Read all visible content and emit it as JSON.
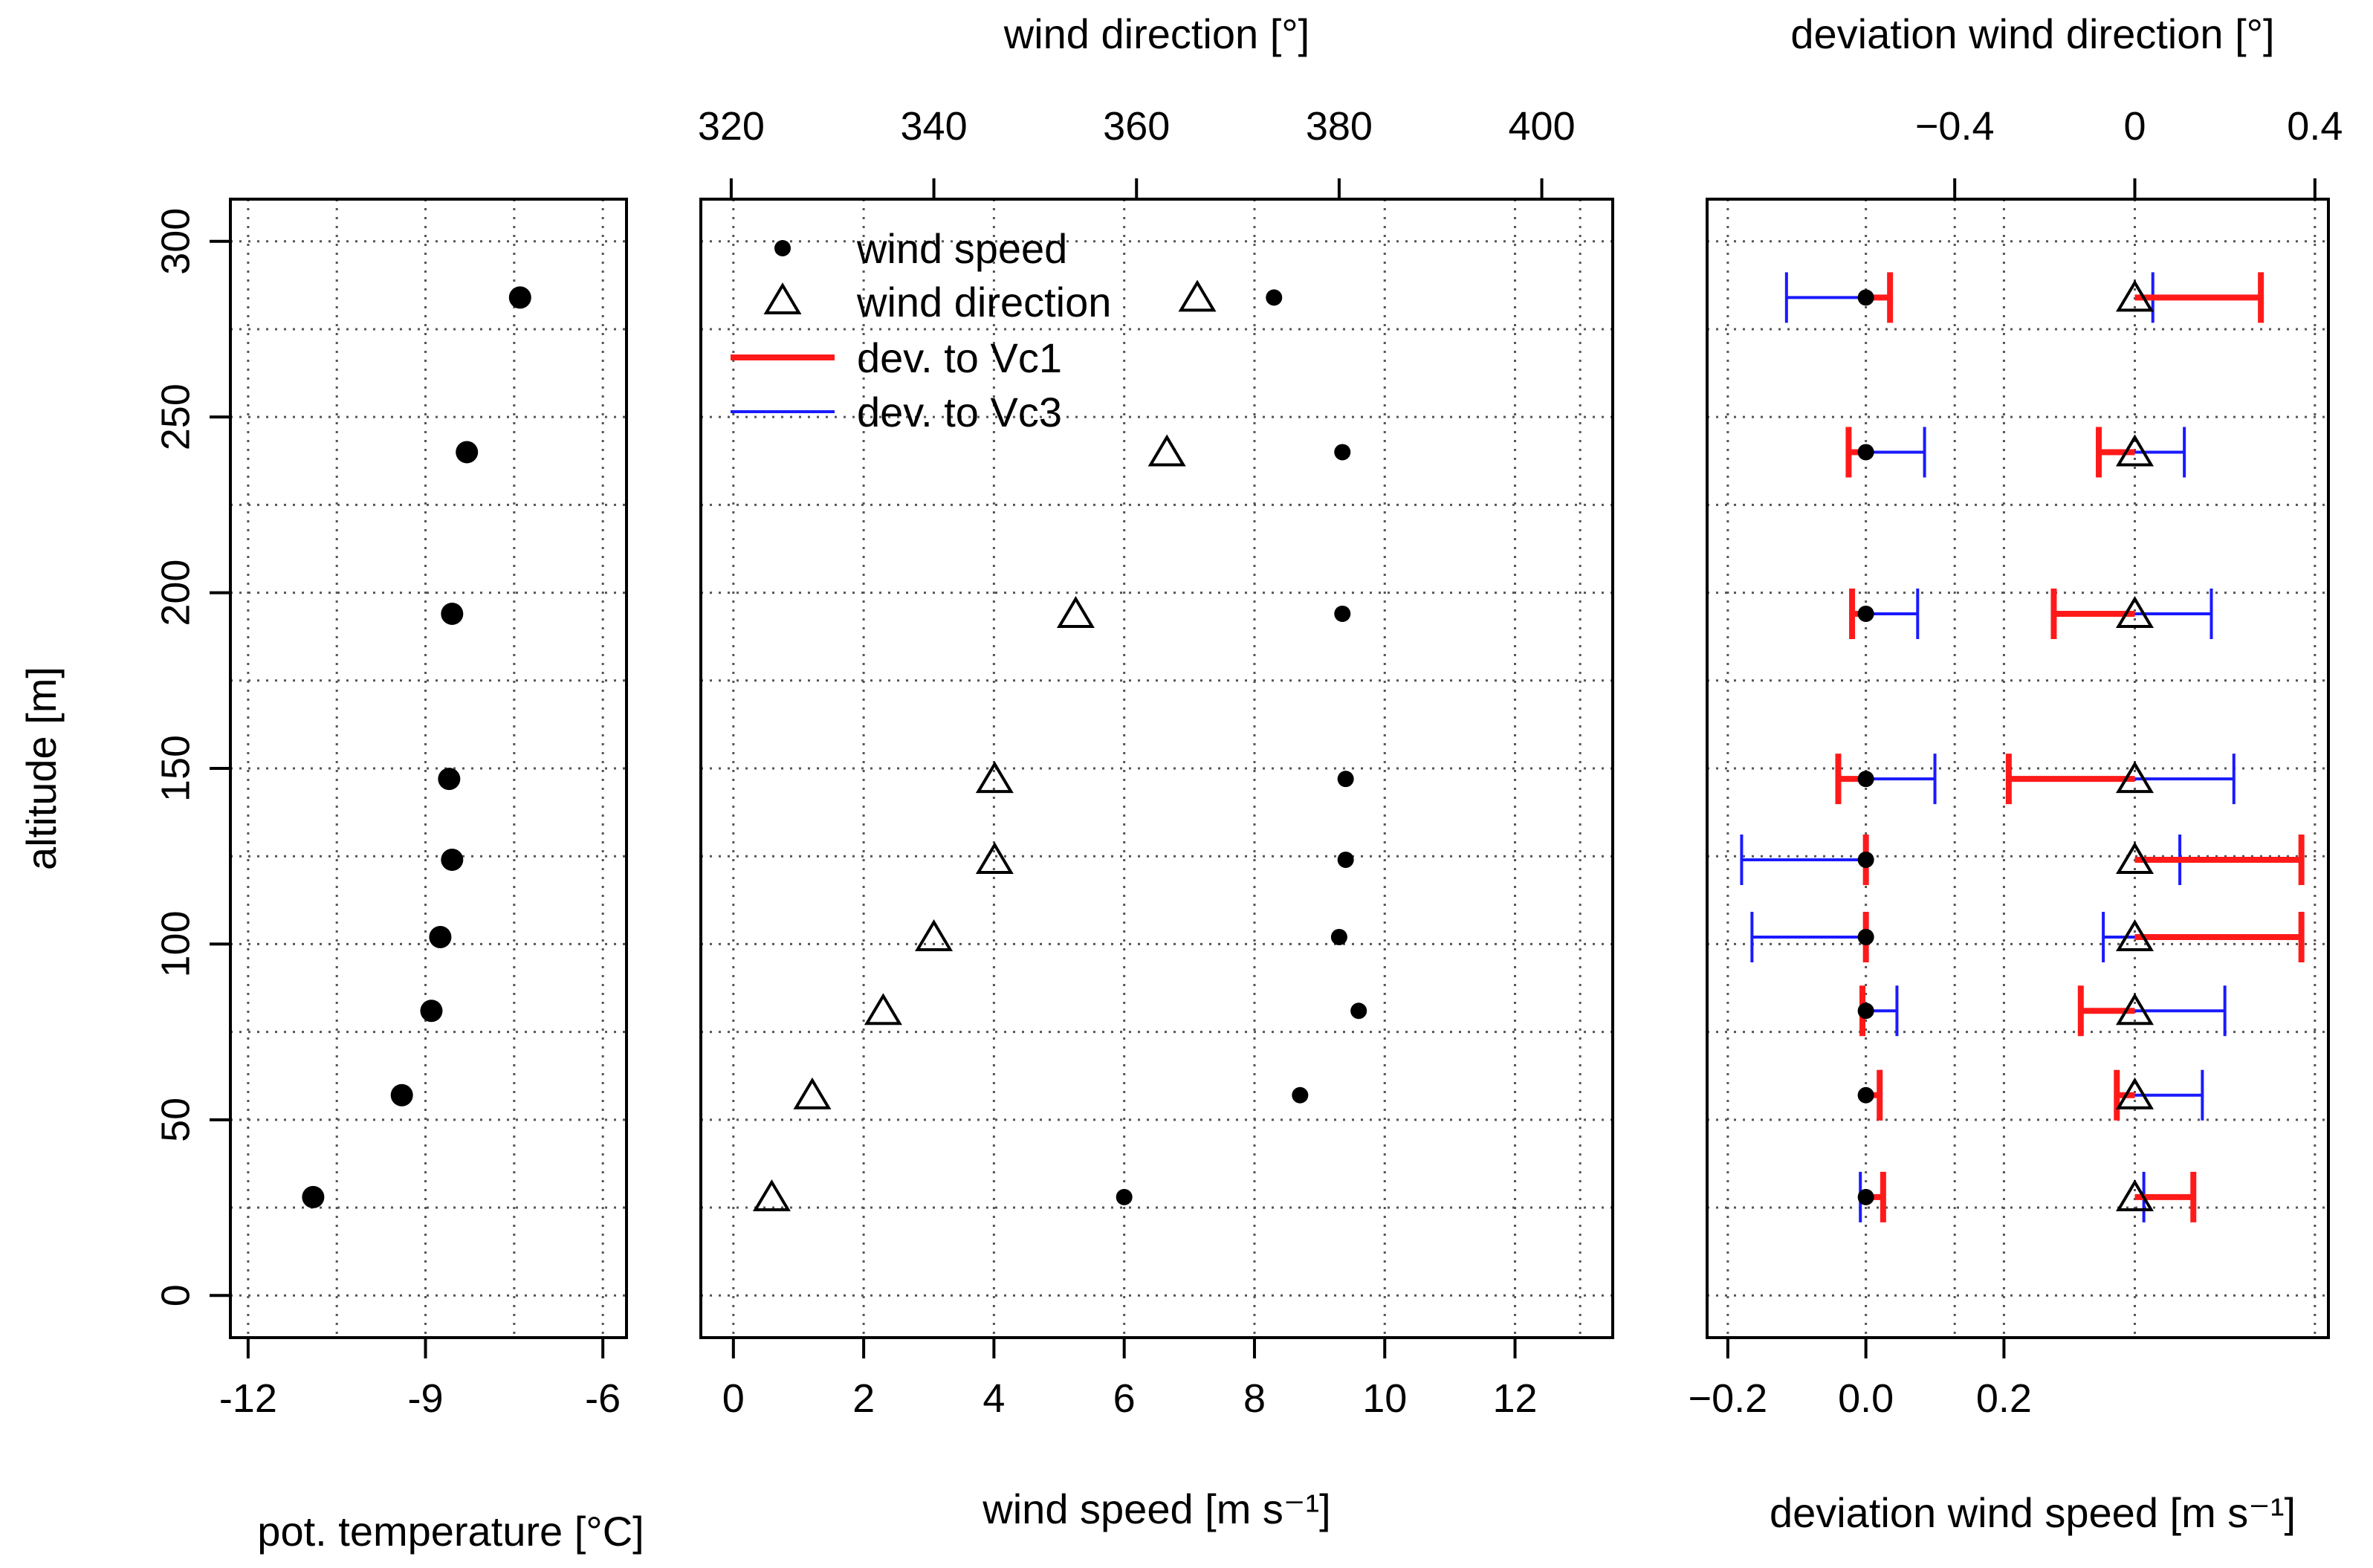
{
  "figure": {
    "ylabel": "altitude [m]",
    "y_ticks": [
      0,
      50,
      100,
      150,
      200,
      250,
      300
    ],
    "altitudes": [
      28,
      57,
      81,
      102,
      124,
      147,
      194,
      240,
      284
    ]
  },
  "chart_data": [
    {
      "name": "temperature-panel",
      "type": "scatter",
      "xlabel": "pot. temperature [°C]",
      "ylabel": "altitude [m]",
      "xlim": [
        -12.3,
        -5.6
      ],
      "ylim": [
        -12,
        312
      ],
      "x_ticks": [
        -12,
        -9,
        -6
      ],
      "y_ticks": [
        0,
        50,
        100,
        150,
        200,
        250,
        300
      ],
      "series": [
        {
          "name": "pot. temperature",
          "x": [
            -10.9,
            -9.4,
            -8.9,
            -8.75,
            -8.55,
            -8.6,
            -8.55,
            -8.3,
            -7.4
          ],
          "y": [
            28,
            57,
            81,
            102,
            124,
            147,
            194,
            240,
            284
          ]
        }
      ]
    },
    {
      "name": "wind-panel",
      "type": "scatter",
      "xlabel": "wind speed [m s⁻¹]",
      "x2label": "wind direction [°]",
      "xlim": [
        -0.5,
        13.5
      ],
      "x2lim": [
        317,
        407
      ],
      "ylim": [
        -12,
        312
      ],
      "x_ticks": [
        0,
        2,
        4,
        6,
        8,
        10,
        12
      ],
      "x2_ticks": [
        320,
        340,
        360,
        380,
        400
      ],
      "legend": [
        "wind speed",
        "wind direction",
        "dev. to Vc1",
        "dev. to Vc3"
      ],
      "series": [
        {
          "name": "wind speed",
          "x": [
            6.0,
            8.7,
            9.6,
            9.3,
            9.4,
            9.4,
            9.35,
            9.35,
            8.3
          ],
          "y": [
            28,
            57,
            81,
            102,
            124,
            147,
            194,
            240,
            284
          ]
        },
        {
          "name": "wind direction",
          "x": [
            324,
            328,
            335,
            340,
            346,
            346,
            354,
            363,
            366
          ],
          "y": [
            28,
            57,
            81,
            102,
            124,
            147,
            194,
            240,
            284
          ]
        }
      ]
    },
    {
      "name": "deviation-panel",
      "type": "scatter",
      "xlabel": "deviation wind speed [m s⁻¹]",
      "x2label": "deviation wind direction [°]",
      "xlim": [
        -0.23,
        0.67
      ],
      "x2lim": [
        -0.95,
        0.43
      ],
      "ylim": [
        -12,
        312
      ],
      "x_ticks": [
        -0.2,
        0.0,
        0.2
      ],
      "x2_ticks": [
        -0.4,
        0,
        0.4
      ],
      "x_tick_labels": [
        "−0.2",
        "0.0",
        "0.2"
      ],
      "x2_tick_labels": [
        "−0.4",
        "0",
        "0.4"
      ],
      "series": [
        {
          "name": "wind speed",
          "x": [
            0,
            0,
            0,
            0,
            0,
            0,
            0,
            0,
            0
          ],
          "y": [
            28,
            57,
            81,
            102,
            124,
            147,
            194,
            240,
            284
          ]
        },
        {
          "name": "wind direction",
          "x": [
            0,
            0,
            0,
            0,
            0,
            0,
            0,
            0,
            0
          ],
          "y": [
            28,
            57,
            81,
            102,
            124,
            147,
            194,
            240,
            284
          ]
        },
        {
          "name": "dev. to Vc1 (wind speed)",
          "x": [
            0.025,
            0.02,
            -0.005,
            0.0,
            0.0,
            -0.04,
            -0.02,
            -0.025,
            0.035
          ],
          "y": [
            28,
            57,
            81,
            102,
            124,
            147,
            194,
            240,
            284
          ]
        },
        {
          "name": "dev. to Vc3 (wind speed)",
          "x": [
            -0.008,
            0.022,
            0.045,
            -0.165,
            -0.18,
            0.1,
            0.075,
            0.085,
            -0.115
          ],
          "y": [
            28,
            57,
            81,
            102,
            124,
            147,
            194,
            240,
            284
          ]
        },
        {
          "name": "dev. to Vc1 (wind direction)",
          "x": [
            0.13,
            -0.04,
            -0.12,
            0.37,
            0.37,
            -0.28,
            -0.18,
            -0.08,
            0.28
          ],
          "y": [
            28,
            57,
            81,
            102,
            124,
            147,
            194,
            240,
            284
          ]
        },
        {
          "name": "dev. to Vc3 (wind direction)",
          "x": [
            0.02,
            0.15,
            0.2,
            -0.07,
            0.1,
            0.22,
            0.17,
            0.11,
            0.04
          ],
          "y": [
            28,
            57,
            81,
            102,
            124,
            147,
            194,
            240,
            284
          ]
        }
      ]
    }
  ],
  "colors": {
    "vc1": "#ff1a1a",
    "vc3": "#1a1aff",
    "ink": "#000000",
    "grid": "#555555"
  }
}
